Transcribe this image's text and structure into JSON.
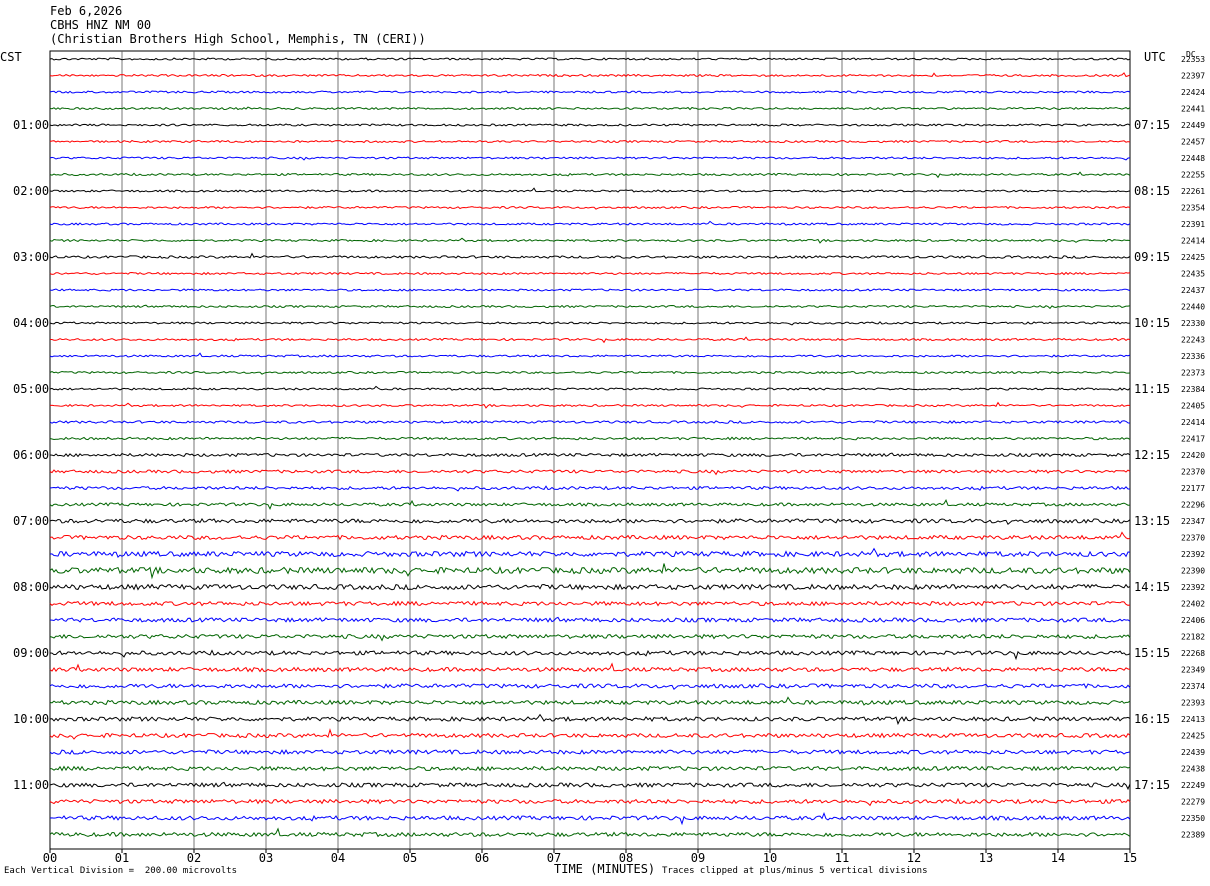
{
  "header": {
    "date": "Feb 6,2026",
    "station": "CBHS HNZ NM 00",
    "location": "(Christian Brothers High School, Memphis, TN (CERI))"
  },
  "labels": {
    "left_tz": "CST",
    "right_tz": "UTC",
    "dc_header": "DC"
  },
  "footer": {
    "scale_note": "Each Vertical Division =  200.00 microvolts",
    "clip_note": "Traces clipped at plus/minus 5 vertical divisions",
    "xlabel": "TIME (MINUTES)"
  },
  "colors": {
    "trace_cycle": [
      "#000000",
      "#ff0000",
      "#0000ff",
      "#006400"
    ],
    "grid": "#000000"
  },
  "chart_data": {
    "type": "line",
    "xlabel": "TIME (MINUTES)",
    "xlim": [
      0,
      15
    ],
    "x_ticks": [
      "00",
      "01",
      "02",
      "03",
      "04",
      "05",
      "06",
      "07",
      "08",
      "09",
      "10",
      "11",
      "12",
      "13",
      "14",
      "15"
    ],
    "grid": true,
    "left_time_labels": [
      "01:00",
      "02:00",
      "03:00",
      "04:00",
      "05:00",
      "06:00",
      "07:00",
      "08:00",
      "09:00",
      "10:00",
      "11:00"
    ],
    "right_time_labels": [
      "07:15",
      "08:15",
      "09:15",
      "10:15",
      "11:15",
      "12:15",
      "13:15",
      "14:15",
      "15:15",
      "16:15",
      "17:15"
    ],
    "dc_offsets": [
      22353,
      22397,
      22424,
      22441,
      22449,
      22457,
      22448,
      22255,
      22261,
      22354,
      22391,
      22414,
      22425,
      22435,
      22437,
      22440,
      22330,
      22243,
      22336,
      22373,
      22384,
      22405,
      22414,
      22417,
      22420,
      22370,
      22177,
      22296,
      22347,
      22370,
      22392,
      22390,
      22392,
      22402,
      22406,
      22182,
      22268,
      22349,
      22374,
      22393,
      22413,
      22425,
      22439,
      22438,
      22249,
      22279,
      22350,
      22389
    ],
    "series_amplitude": [
      1,
      1,
      1,
      1,
      1,
      1,
      1,
      1,
      1,
      1,
      1,
      1,
      1.2,
      1,
      1,
      1,
      1,
      1,
      1,
      1,
      1,
      1,
      1.2,
      1.2,
      1.5,
      1.5,
      1.5,
      1.5,
      2,
      2,
      2.5,
      3,
      2.5,
      2,
      2,
      2,
      2,
      2,
      2,
      2,
      2,
      2,
      2,
      2,
      2,
      2,
      2,
      2
    ]
  }
}
